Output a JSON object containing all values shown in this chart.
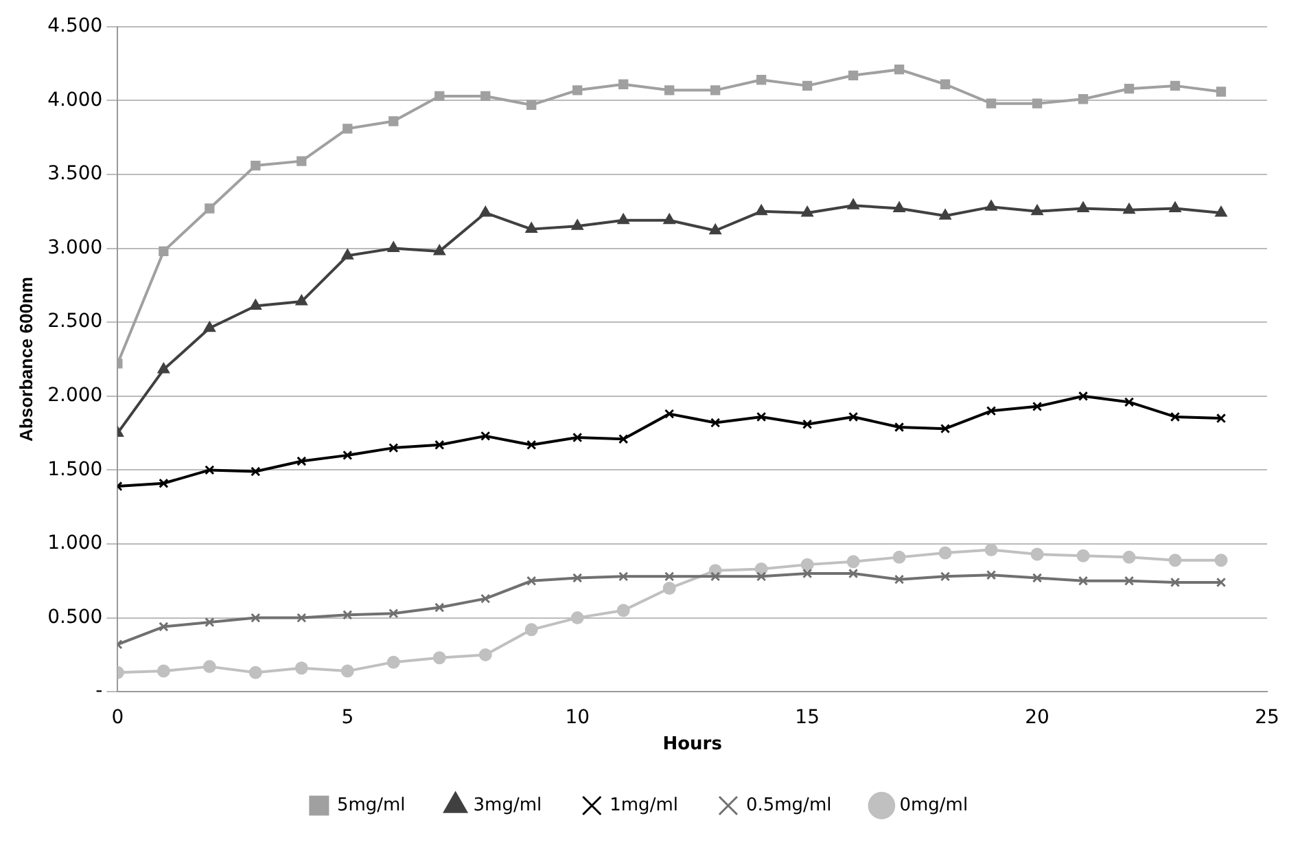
{
  "chart_data": {
    "type": "line",
    "xlabel": "Hours",
    "ylabel": "Absorbance 600nm",
    "x": [
      0,
      1,
      2,
      3,
      4,
      5,
      6,
      7,
      8,
      9,
      10,
      11,
      12,
      13,
      14,
      15,
      16,
      17,
      18,
      19,
      20,
      21,
      22,
      23,
      24
    ],
    "xlim": [
      0,
      25
    ],
    "xticks": [
      0,
      5,
      10,
      15,
      20,
      25
    ],
    "ylim": [
      0,
      4.5
    ],
    "yticks": [
      {
        "value": 0,
        "label": "-"
      },
      {
        "value": 0.5,
        "label": "0.500"
      },
      {
        "value": 1,
        "label": "1.000"
      },
      {
        "value": 1.5,
        "label": "1.500"
      },
      {
        "value": 2,
        "label": "2.000"
      },
      {
        "value": 2.5,
        "label": "2.500"
      },
      {
        "value": 3,
        "label": "3.000"
      },
      {
        "value": 3.5,
        "label": "3.500"
      },
      {
        "value": 4,
        "label": "4.000"
      },
      {
        "value": 4.5,
        "label": "4.500"
      }
    ],
    "grid": "y",
    "legend": "bottom",
    "line_style": "solid",
    "series": [
      {
        "name": "5mg/ml",
        "color": "#a0a0a0",
        "marker": "square",
        "values": [
          2.22,
          2.98,
          3.27,
          3.56,
          3.59,
          3.81,
          3.86,
          4.03,
          4.03,
          3.97,
          4.07,
          4.11,
          4.07,
          4.07,
          4.14,
          4.1,
          4.17,
          4.21,
          4.11,
          3.98,
          3.98,
          4.01,
          4.08,
          4.1,
          4.06
        ]
      },
      {
        "name": "3mg/ml",
        "color": "#404040",
        "marker": "triangle",
        "values": [
          1.75,
          2.18,
          2.46,
          2.61,
          2.64,
          2.95,
          3.0,
          2.98,
          3.24,
          3.13,
          3.15,
          3.19,
          3.19,
          3.12,
          3.25,
          3.24,
          3.29,
          3.27,
          3.22,
          3.28,
          3.25,
          3.27,
          3.26,
          3.27,
          3.24
        ]
      },
      {
        "name": "1mg/ml",
        "color": "#000000",
        "marker": "cross",
        "values": [
          1.39,
          1.41,
          1.5,
          1.49,
          1.56,
          1.6,
          1.65,
          1.67,
          1.73,
          1.67,
          1.72,
          1.71,
          1.88,
          1.82,
          1.86,
          1.81,
          1.86,
          1.79,
          1.78,
          1.9,
          1.93,
          2.0,
          1.96,
          1.86,
          1.85
        ]
      },
      {
        "name": "0.5mg/ml",
        "color": "#707070",
        "marker": "cross",
        "values": [
          0.32,
          0.44,
          0.47,
          0.5,
          0.5,
          0.52,
          0.53,
          0.57,
          0.63,
          0.75,
          0.77,
          0.78,
          0.78,
          0.78,
          0.78,
          0.8,
          0.8,
          0.76,
          0.78,
          0.79,
          0.77,
          0.75,
          0.75,
          0.74,
          0.74
        ]
      },
      {
        "name": "0mg/ml",
        "color": "#c0c0c0",
        "marker": "circle",
        "values": [
          0.13,
          0.14,
          0.17,
          0.13,
          0.16,
          0.14,
          0.2,
          0.23,
          0.25,
          0.42,
          0.5,
          0.55,
          0.7,
          0.82,
          0.83,
          0.86,
          0.88,
          0.91,
          0.94,
          0.96,
          0.93,
          0.92,
          0.91,
          0.89,
          0.89
        ]
      }
    ]
  }
}
